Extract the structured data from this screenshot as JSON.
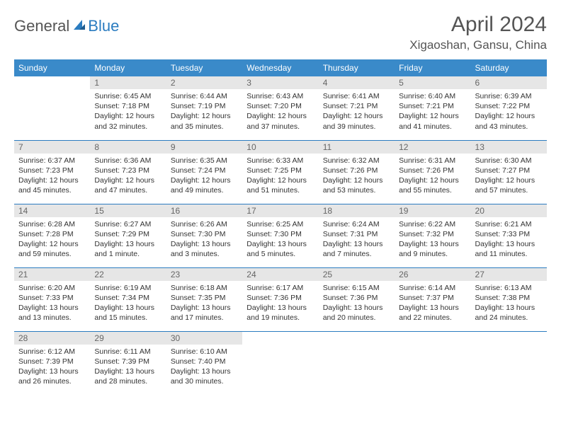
{
  "logo": {
    "general": "General",
    "blue": "Blue"
  },
  "title": "April 2024",
  "location": "Xigaoshan, Gansu, China",
  "colors": {
    "header_bg": "#3a8ac9",
    "header_text": "#ffffff",
    "daynum_bg": "#e6e6e6",
    "daynum_text": "#666666",
    "border": "#2b7cc0",
    "logo_blue": "#2b7cc0",
    "body_text": "#333333"
  },
  "weekdays": [
    "Sunday",
    "Monday",
    "Tuesday",
    "Wednesday",
    "Thursday",
    "Friday",
    "Saturday"
  ],
  "weeks": [
    [
      {
        "n": "",
        "sr": "",
        "ss": "",
        "dl": ""
      },
      {
        "n": "1",
        "sr": "Sunrise: 6:45 AM",
        "ss": "Sunset: 7:18 PM",
        "dl": "Daylight: 12 hours and 32 minutes."
      },
      {
        "n": "2",
        "sr": "Sunrise: 6:44 AM",
        "ss": "Sunset: 7:19 PM",
        "dl": "Daylight: 12 hours and 35 minutes."
      },
      {
        "n": "3",
        "sr": "Sunrise: 6:43 AM",
        "ss": "Sunset: 7:20 PM",
        "dl": "Daylight: 12 hours and 37 minutes."
      },
      {
        "n": "4",
        "sr": "Sunrise: 6:41 AM",
        "ss": "Sunset: 7:21 PM",
        "dl": "Daylight: 12 hours and 39 minutes."
      },
      {
        "n": "5",
        "sr": "Sunrise: 6:40 AM",
        "ss": "Sunset: 7:21 PM",
        "dl": "Daylight: 12 hours and 41 minutes."
      },
      {
        "n": "6",
        "sr": "Sunrise: 6:39 AM",
        "ss": "Sunset: 7:22 PM",
        "dl": "Daylight: 12 hours and 43 minutes."
      }
    ],
    [
      {
        "n": "7",
        "sr": "Sunrise: 6:37 AM",
        "ss": "Sunset: 7:23 PM",
        "dl": "Daylight: 12 hours and 45 minutes."
      },
      {
        "n": "8",
        "sr": "Sunrise: 6:36 AM",
        "ss": "Sunset: 7:23 PM",
        "dl": "Daylight: 12 hours and 47 minutes."
      },
      {
        "n": "9",
        "sr": "Sunrise: 6:35 AM",
        "ss": "Sunset: 7:24 PM",
        "dl": "Daylight: 12 hours and 49 minutes."
      },
      {
        "n": "10",
        "sr": "Sunrise: 6:33 AM",
        "ss": "Sunset: 7:25 PM",
        "dl": "Daylight: 12 hours and 51 minutes."
      },
      {
        "n": "11",
        "sr": "Sunrise: 6:32 AM",
        "ss": "Sunset: 7:26 PM",
        "dl": "Daylight: 12 hours and 53 minutes."
      },
      {
        "n": "12",
        "sr": "Sunrise: 6:31 AM",
        "ss": "Sunset: 7:26 PM",
        "dl": "Daylight: 12 hours and 55 minutes."
      },
      {
        "n": "13",
        "sr": "Sunrise: 6:30 AM",
        "ss": "Sunset: 7:27 PM",
        "dl": "Daylight: 12 hours and 57 minutes."
      }
    ],
    [
      {
        "n": "14",
        "sr": "Sunrise: 6:28 AM",
        "ss": "Sunset: 7:28 PM",
        "dl": "Daylight: 12 hours and 59 minutes."
      },
      {
        "n": "15",
        "sr": "Sunrise: 6:27 AM",
        "ss": "Sunset: 7:29 PM",
        "dl": "Daylight: 13 hours and 1 minute."
      },
      {
        "n": "16",
        "sr": "Sunrise: 6:26 AM",
        "ss": "Sunset: 7:30 PM",
        "dl": "Daylight: 13 hours and 3 minutes."
      },
      {
        "n": "17",
        "sr": "Sunrise: 6:25 AM",
        "ss": "Sunset: 7:30 PM",
        "dl": "Daylight: 13 hours and 5 minutes."
      },
      {
        "n": "18",
        "sr": "Sunrise: 6:24 AM",
        "ss": "Sunset: 7:31 PM",
        "dl": "Daylight: 13 hours and 7 minutes."
      },
      {
        "n": "19",
        "sr": "Sunrise: 6:22 AM",
        "ss": "Sunset: 7:32 PM",
        "dl": "Daylight: 13 hours and 9 minutes."
      },
      {
        "n": "20",
        "sr": "Sunrise: 6:21 AM",
        "ss": "Sunset: 7:33 PM",
        "dl": "Daylight: 13 hours and 11 minutes."
      }
    ],
    [
      {
        "n": "21",
        "sr": "Sunrise: 6:20 AM",
        "ss": "Sunset: 7:33 PM",
        "dl": "Daylight: 13 hours and 13 minutes."
      },
      {
        "n": "22",
        "sr": "Sunrise: 6:19 AM",
        "ss": "Sunset: 7:34 PM",
        "dl": "Daylight: 13 hours and 15 minutes."
      },
      {
        "n": "23",
        "sr": "Sunrise: 6:18 AM",
        "ss": "Sunset: 7:35 PM",
        "dl": "Daylight: 13 hours and 17 minutes."
      },
      {
        "n": "24",
        "sr": "Sunrise: 6:17 AM",
        "ss": "Sunset: 7:36 PM",
        "dl": "Daylight: 13 hours and 19 minutes."
      },
      {
        "n": "25",
        "sr": "Sunrise: 6:15 AM",
        "ss": "Sunset: 7:36 PM",
        "dl": "Daylight: 13 hours and 20 minutes."
      },
      {
        "n": "26",
        "sr": "Sunrise: 6:14 AM",
        "ss": "Sunset: 7:37 PM",
        "dl": "Daylight: 13 hours and 22 minutes."
      },
      {
        "n": "27",
        "sr": "Sunrise: 6:13 AM",
        "ss": "Sunset: 7:38 PM",
        "dl": "Daylight: 13 hours and 24 minutes."
      }
    ],
    [
      {
        "n": "28",
        "sr": "Sunrise: 6:12 AM",
        "ss": "Sunset: 7:39 PM",
        "dl": "Daylight: 13 hours and 26 minutes."
      },
      {
        "n": "29",
        "sr": "Sunrise: 6:11 AM",
        "ss": "Sunset: 7:39 PM",
        "dl": "Daylight: 13 hours and 28 minutes."
      },
      {
        "n": "30",
        "sr": "Sunrise: 6:10 AM",
        "ss": "Sunset: 7:40 PM",
        "dl": "Daylight: 13 hours and 30 minutes."
      },
      {
        "n": "",
        "sr": "",
        "ss": "",
        "dl": ""
      },
      {
        "n": "",
        "sr": "",
        "ss": "",
        "dl": ""
      },
      {
        "n": "",
        "sr": "",
        "ss": "",
        "dl": ""
      },
      {
        "n": "",
        "sr": "",
        "ss": "",
        "dl": ""
      }
    ]
  ]
}
